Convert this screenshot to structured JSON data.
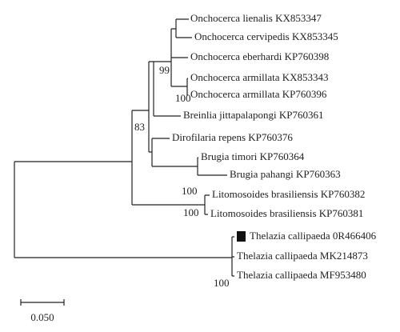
{
  "tree": {
    "leaves": [
      "Onchocerca lienalis KX853347",
      "Onchocerca cervipedis KX853345",
      "Onchocerca eberhardi KP760398",
      "Onchocerca armillata KX853343",
      "Onchocerca armillata KP760396",
      "Breinlia jittapalapongi KP760361",
      "Dirofilaria repens KP760376",
      "Brugia timori KP760364",
      "Brugia pahangi KP760363",
      "Litomosoides brasiliensis KP760382",
      "Litomosoides brasiliensis KP760381",
      "Thelazia callipaeda 0R466406",
      "Thelazia callipaeda MK214873",
      "Thelazia callipaeda MF953480"
    ],
    "bootstrap": [
      "99",
      "100",
      "83",
      "100",
      "100",
      "100"
    ],
    "scale_bar": "0.050"
  }
}
